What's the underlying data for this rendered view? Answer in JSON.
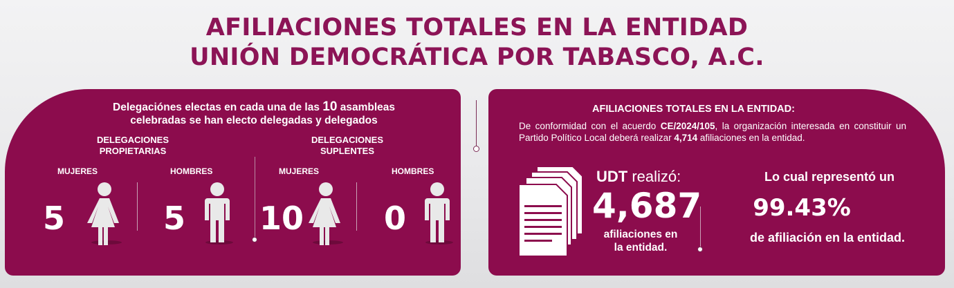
{
  "title": {
    "line1": "AFILIACIONES TOTALES EN LA ENTIDAD",
    "line2": "UNIÓN DEMOCRÁTICA POR TABASCO, A.C."
  },
  "left_panel": {
    "intro_before": "Delegaciónes electas en cada una de  las ",
    "intro_number": "10",
    "intro_after": " asambleas",
    "intro_line2": "celebradas se han electo delegadas y delegados",
    "propietarias": {
      "heading_line1": "DELEGACIONES",
      "heading_line2": "PROPIETARIAS",
      "women_label": "MUJERES",
      "women_count": "5",
      "men_label": "HOMBRES",
      "men_count": "5"
    },
    "suplentes": {
      "heading_line1": "DELEGACIONES",
      "heading_line2": "SUPLENTES",
      "women_label": "MUJERES",
      "women_count": "10",
      "men_label": "HOMBRES",
      "men_count": "0"
    }
  },
  "right_panel": {
    "heading": "AFILIACIONES TOTALES EN LA ENTIDAD:",
    "body_before": "De conformidad con el acuerdo ",
    "agreement": "CE/2024/105",
    "body_middle": ", la organización interesada en constituir un Partido Político Local deberá realizar ",
    "required": "4,714",
    "body_after": " afiliaciones en la entidad.",
    "org_short": "UDT",
    "realized_label": " realizó:",
    "affiliations_count": "4,687",
    "affiliations_line1": "afiliaciones en",
    "affiliations_line2": "la entidad.",
    "represented_label": "Lo cual representó un",
    "percentage": "99.43%",
    "percentage_label": "de afiliación en la entidad."
  },
  "colors": {
    "brand": "#8c1456",
    "panel": "#8c0c4d",
    "text_on_panel": "#ffffff"
  },
  "icons": [
    "woman-icon",
    "man-icon",
    "documents-icon"
  ]
}
